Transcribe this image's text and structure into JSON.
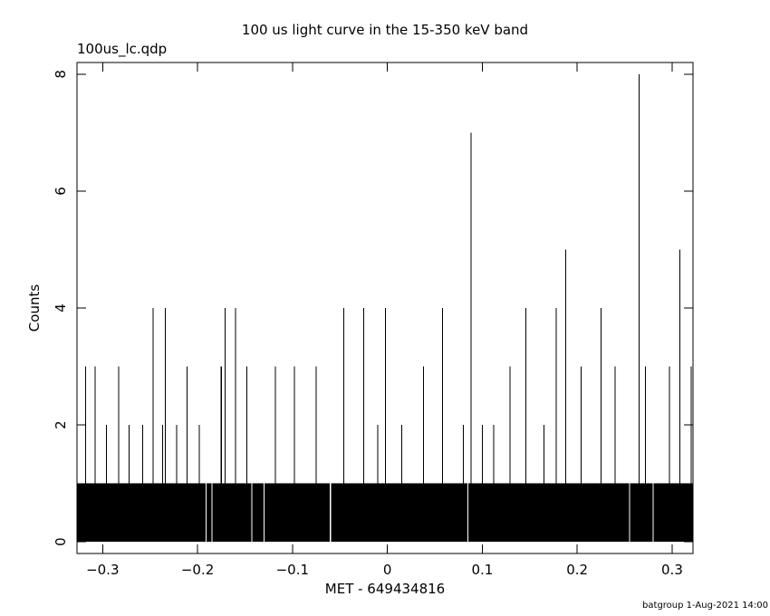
{
  "chart_data": {
    "type": "histogram",
    "title": "100 us light curve in the 15-350 keV band",
    "subtitle": "100us_lc.qdp",
    "x_label": "MET - 649434816",
    "y_label": "Counts",
    "footer": "batgroup  1-Aug-2021 14:00",
    "color": "#000000",
    "bins": [
      -0.327,
      -0.3185,
      -0.3175,
      -0.3085,
      -0.3075,
      -0.2965,
      -0.2955,
      -0.2835,
      -0.2825,
      -0.2725,
      -0.2715,
      -0.2585,
      -0.2575,
      -0.2475,
      -0.2465,
      -0.2375,
      -0.2365,
      -0.2345,
      -0.2335,
      -0.2225,
      -0.2215,
      -0.2115,
      -0.2105,
      -0.1985,
      -0.1975,
      -0.1915,
      -0.1905,
      -0.1855,
      -0.1845,
      -0.1755,
      -0.1745,
      -0.1715,
      -0.1705,
      -0.1605,
      -0.1595,
      -0.1485,
      -0.1475,
      -0.1435,
      -0.1425,
      -0.1305,
      -0.1295,
      -0.1185,
      -0.1175,
      -0.0985,
      -0.0975,
      -0.0755,
      -0.0745,
      -0.0605,
      -0.0595,
      -0.0465,
      -0.0455,
      -0.0255,
      -0.0245,
      -0.0105,
      -0.0095,
      -0.0025,
      -0.0015,
      0.0145,
      0.0155,
      0.0375,
      0.0385,
      0.0575,
      0.0585,
      0.0795,
      0.0805,
      0.0845,
      0.0855,
      0.0875,
      0.0885,
      0.0995,
      0.1005,
      0.1115,
      0.1125,
      0.1285,
      0.1295,
      0.1455,
      0.1465,
      0.1645,
      0.1655,
      0.1775,
      0.1785,
      0.1875,
      0.1885,
      0.2035,
      0.2045,
      0.2245,
      0.2255,
      0.2395,
      0.2405,
      0.2545,
      0.2555,
      0.2645,
      0.2655,
      0.2715,
      0.2725,
      0.2795,
      0.2805,
      0.2965,
      0.2975,
      0.3075,
      0.3085,
      0.3195,
      0.3205,
      0.322
    ],
    "values": [
      1,
      3,
      1,
      3,
      1,
      2,
      1,
      3,
      1,
      2,
      1,
      2,
      1,
      4,
      1,
      2,
      1,
      4,
      1,
      2,
      1,
      3,
      1,
      2,
      1,
      0,
      1,
      0,
      1,
      3,
      1,
      4,
      1,
      4,
      1,
      3,
      1,
      0,
      1,
      0,
      1,
      3,
      1,
      3,
      1,
      3,
      1,
      0,
      1,
      4,
      1,
      4,
      1,
      2,
      1,
      4,
      1,
      2,
      1,
      3,
      1,
      4,
      1,
      2,
      1,
      0,
      1,
      7,
      1,
      2,
      1,
      2,
      1,
      3,
      1,
      4,
      1,
      2,
      1,
      4,
      1,
      5,
      1,
      3,
      1,
      4,
      1,
      3,
      1,
      0,
      1,
      8,
      1,
      3,
      1,
      0,
      1,
      3,
      1,
      5,
      1,
      3,
      1
    ],
    "xlim": [
      -0.327,
      0.322
    ],
    "ylim": [
      -0.2,
      8.2
    ],
    "xticks": [
      {
        "value": -0.3,
        "label": "−0.3"
      },
      {
        "value": -0.2,
        "label": "−0.2"
      },
      {
        "value": -0.1,
        "label": "−0.1"
      },
      0,
      0.1,
      0.2,
      0.3
    ],
    "yticks": [
      0,
      2,
      4,
      6,
      8
    ]
  }
}
